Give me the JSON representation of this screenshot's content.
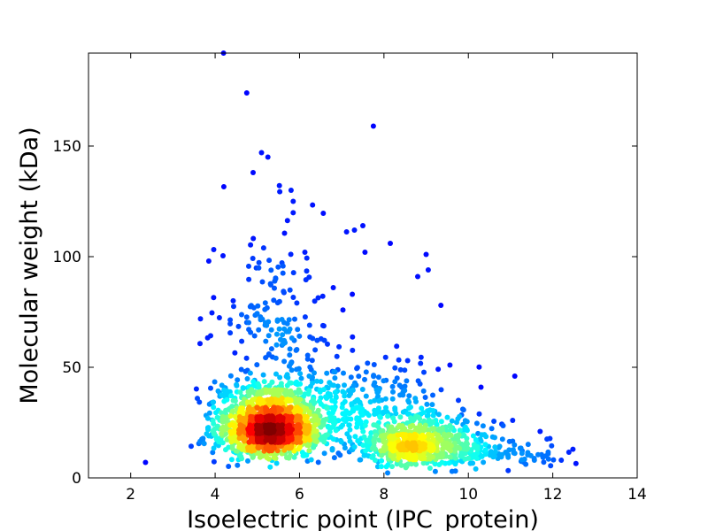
{
  "chart_data": {
    "type": "scatter",
    "title": "",
    "xlabel": "Isoelectric point (IPC_protein)",
    "ylabel": "Molecular weight (kDa)",
    "xlim": [
      1,
      14
    ],
    "ylim": [
      0,
      192
    ],
    "xticks": [
      "2",
      "4",
      "6",
      "8",
      "10",
      "12",
      "14"
    ],
    "yticks": [
      "0",
      "50",
      "100",
      "150"
    ],
    "grid": false,
    "legend": "none",
    "color_scale": "jet (point density)",
    "clusters": [
      {
        "center": [
          5.3,
          23
        ],
        "spread": [
          0.65,
          11
        ],
        "count": 1500
      },
      {
        "center": [
          8.7,
          15
        ],
        "spread": [
          0.75,
          8
        ],
        "count": 700
      },
      {
        "center": [
          5.4,
          75
        ],
        "spread": [
          0.7,
          25
        ],
        "count": 140
      },
      {
        "center": [
          7.2,
          32
        ],
        "spread": [
          0.9,
          14
        ],
        "count": 250
      },
      {
        "center": [
          10.8,
          11
        ],
        "spread": [
          0.7,
          5
        ],
        "count": 90
      }
    ],
    "outliers": [
      {
        "x": 4.2,
        "y": 192
      },
      {
        "x": 4.75,
        "y": 174
      },
      {
        "x": 7.75,
        "y": 159
      },
      {
        "x": 5.1,
        "y": 147
      },
      {
        "x": 5.25,
        "y": 145
      },
      {
        "x": 4.9,
        "y": 138
      },
      {
        "x": 5.8,
        "y": 130
      },
      {
        "x": 5.85,
        "y": 125
      },
      {
        "x": 7.5,
        "y": 114
      },
      {
        "x": 7.3,
        "y": 112
      },
      {
        "x": 8.15,
        "y": 106
      },
      {
        "x": 7.55,
        "y": 102
      },
      {
        "x": 9.0,
        "y": 101
      },
      {
        "x": 9.05,
        "y": 94
      },
      {
        "x": 3.85,
        "y": 98
      },
      {
        "x": 8.8,
        "y": 91
      },
      {
        "x": 9.35,
        "y": 78
      },
      {
        "x": 2.35,
        "y": 7
      },
      {
        "x": 12.55,
        "y": 6.5
      },
      {
        "x": 12.2,
        "y": 8
      },
      {
        "x": 11.9,
        "y": 8.5
      },
      {
        "x": 11.95,
        "y": 5.5
      },
      {
        "x": 11.7,
        "y": 21
      },
      {
        "x": 11.1,
        "y": 46
      },
      {
        "x": 10.3,
        "y": 41
      },
      {
        "x": 11.05,
        "y": 26
      },
      {
        "x": 6.8,
        "y": 86
      },
      {
        "x": 7.25,
        "y": 83
      }
    ]
  }
}
